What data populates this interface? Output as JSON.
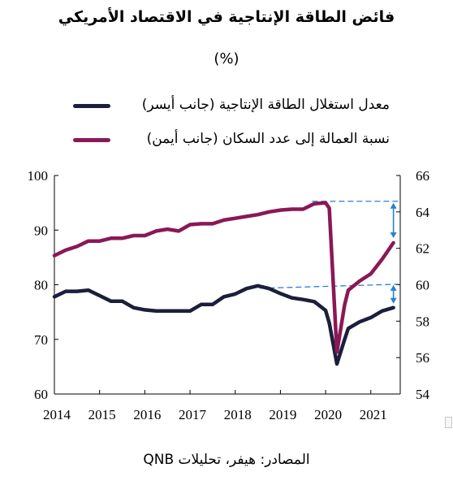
{
  "chart_data": {
    "type": "line",
    "title": "فائض الطاقة الإنتاجية في الاقتصاد الأمريكي",
    "subtitle": "(%)",
    "source": "المصادر: هيفر، تحليلات QNB",
    "x_ticks": [
      "2014",
      "2015",
      "2016",
      "2017",
      "2018",
      "2019",
      "2020",
      "2021"
    ],
    "x_range": [
      2014.0,
      2021.65
    ],
    "left_axis": {
      "ylim": [
        60,
        100
      ],
      "ticks": [
        "60",
        "70",
        "80",
        "90",
        "100"
      ]
    },
    "right_axis": {
      "ylim": [
        54,
        66
      ],
      "ticks": [
        "54",
        "56",
        "58",
        "60",
        "62",
        "64",
        "66"
      ]
    },
    "legend_placement": "top",
    "grid": false,
    "series": [
      {
        "name": "معدل استغلال الطاقة الإنتاجية (جانب أيسر)",
        "axis": "left",
        "color": "#1b1f3b",
        "x": [
          2014.0,
          2014.25,
          2014.5,
          2014.75,
          2015.0,
          2015.25,
          2015.5,
          2015.75,
          2016.0,
          2016.25,
          2016.5,
          2016.75,
          2017.0,
          2017.25,
          2017.5,
          2017.75,
          2018.0,
          2018.25,
          2018.5,
          2018.75,
          2019.0,
          2019.25,
          2019.5,
          2019.75,
          2020.0,
          2020.08,
          2020.25,
          2020.42,
          2020.5,
          2020.75,
          2021.0,
          2021.25,
          2021.5
        ],
        "values": [
          77.8,
          78.8,
          78.8,
          79.0,
          78.0,
          77.0,
          77.0,
          75.8,
          75.4,
          75.2,
          75.2,
          75.2,
          75.2,
          76.4,
          76.4,
          77.8,
          78.3,
          79.3,
          79.8,
          79.3,
          78.4,
          77.6,
          77.3,
          76.9,
          75.3,
          73.0,
          65.5,
          70.0,
          72.0,
          73.2,
          74.0,
          75.2,
          75.8
        ]
      },
      {
        "name": "نسبة العمالة إلى عدد السكان (جانب أيمن)",
        "axis": "right",
        "color": "#8a1857",
        "x": [
          2014.0,
          2014.25,
          2014.5,
          2014.75,
          2015.0,
          2015.25,
          2015.5,
          2015.75,
          2016.0,
          2016.25,
          2016.5,
          2016.75,
          2017.0,
          2017.25,
          2017.5,
          2017.75,
          2018.0,
          2018.25,
          2018.5,
          2018.75,
          2019.0,
          2019.25,
          2019.5,
          2019.75,
          2020.0,
          2020.08,
          2020.25,
          2020.42,
          2020.5,
          2020.75,
          2021.0,
          2021.25,
          2021.5
        ],
        "values": [
          61.6,
          61.9,
          62.1,
          62.4,
          62.4,
          62.55,
          62.55,
          62.7,
          62.7,
          62.95,
          63.05,
          62.95,
          63.3,
          63.35,
          63.35,
          63.55,
          63.65,
          63.75,
          63.85,
          64.0,
          64.1,
          64.15,
          64.15,
          64.45,
          64.5,
          64.2,
          56.3,
          58.9,
          59.7,
          60.2,
          60.6,
          61.4,
          62.3
        ]
      }
    ],
    "annotations": {
      "dashed_color": "#2a7fd4",
      "arrow_color": "#2a7fd4"
    }
  }
}
